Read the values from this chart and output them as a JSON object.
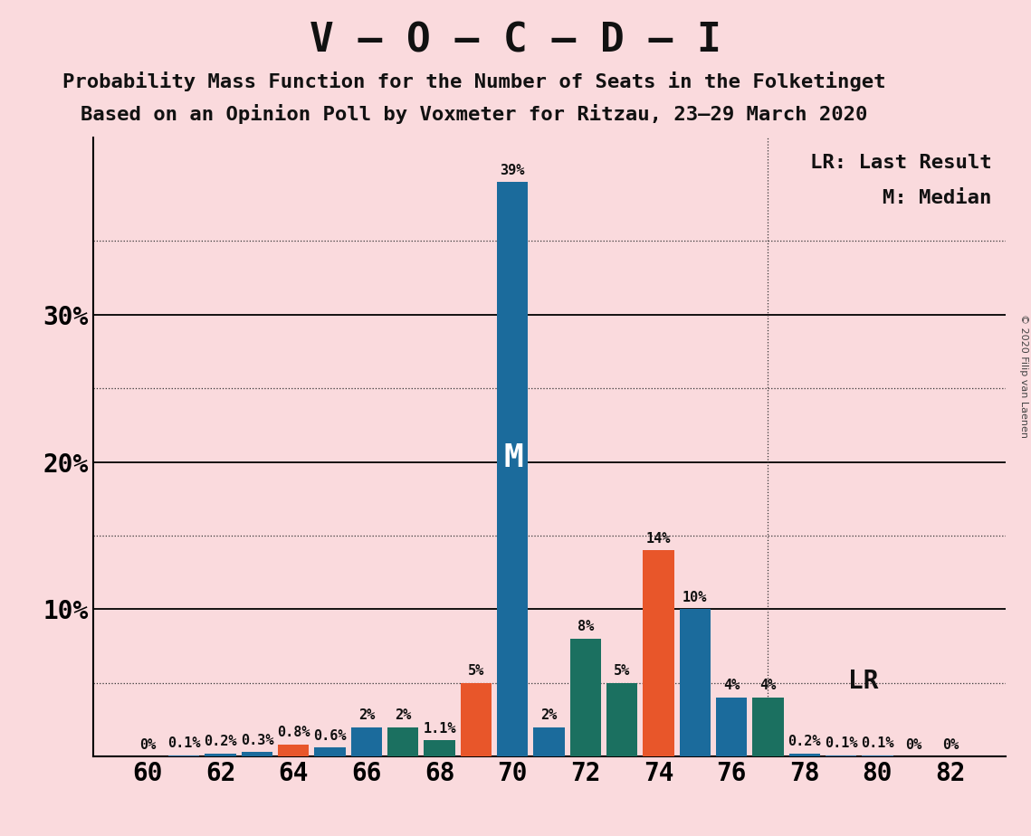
{
  "title": "V – O – C – D – I",
  "subtitle1": "Probability Mass Function for the Number of Seats in the Folketinget",
  "subtitle2": "Based on an Opinion Poll by Voxmeter for Ritzau, 23–29 March 2020",
  "copyright": "© 2020 Filip van Laenen",
  "legend_lr": "LR: Last Result",
  "legend_m": "M: Median",
  "bg_color": "#FADADD",
  "seats": [
    60,
    61,
    62,
    63,
    64,
    65,
    66,
    67,
    68,
    69,
    70,
    71,
    72,
    73,
    74,
    75,
    76,
    77,
    78,
    79,
    80,
    81,
    82
  ],
  "probs": [
    0.0,
    0.1,
    0.2,
    0.3,
    0.8,
    0.6,
    2.0,
    2.0,
    1.1,
    5.0,
    39.0,
    2.0,
    8.0,
    5.0,
    14.0,
    10.0,
    4.0,
    4.0,
    0.2,
    0.1,
    0.1,
    0.0,
    0.0
  ],
  "labels": [
    "0%",
    "0.1%",
    "0.2%",
    "0.3%",
    "0.8%",
    "0.6%",
    "2%",
    "2%",
    "1.1%",
    "5%",
    "39%",
    "2%",
    "8%",
    "5%",
    "14%",
    "10%",
    "4%",
    "4%",
    "0.2%",
    "0.1%",
    "0.1%",
    "0%",
    "0%"
  ],
  "bar_colors": [
    "#1B6B9C",
    "#1B6B9C",
    "#1B6B9C",
    "#1B6B9C",
    "#E8562A",
    "#1B6B9C",
    "#1B6B9C",
    "#1B7060",
    "#1B7060",
    "#E8562A",
    "#1B6B9C",
    "#1B6B9C",
    "#1B7060",
    "#1B7060",
    "#E8562A",
    "#1B6B9C",
    "#1B6B9C",
    "#1B7060",
    "#1B6B9C",
    "#1B6B9C",
    "#1B6B9C",
    "#1B6B9C",
    "#1B6B9C"
  ],
  "median_seat": 70,
  "lr_seat": 77,
  "xlim": [
    58.5,
    83.5
  ],
  "ylim": [
    0,
    42
  ],
  "solid_yticks": [
    10,
    20,
    30
  ],
  "dotted_yticks": [
    5,
    15,
    25,
    35
  ],
  "xticks": [
    60,
    62,
    64,
    66,
    68,
    70,
    72,
    74,
    76,
    78,
    80,
    82
  ],
  "bar_width": 0.85,
  "title_fs": 32,
  "sub_fs": 16,
  "label_fs": 11,
  "tick_fs": 20,
  "legend_fs": 16
}
